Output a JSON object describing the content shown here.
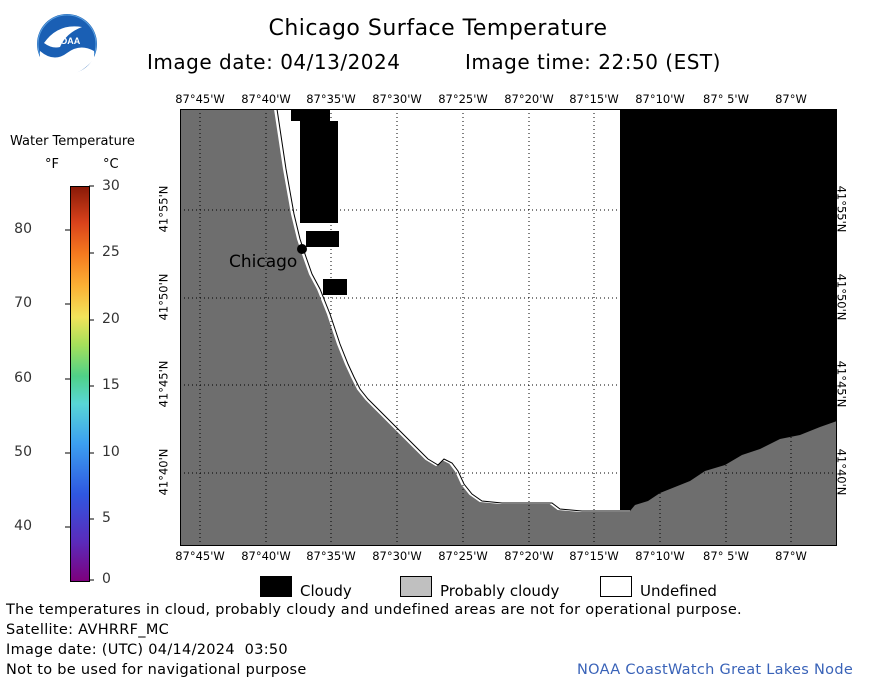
{
  "header": {
    "title": "Chicago Surface Temperature",
    "image_date": "Image date: 04/13/2024",
    "image_time": "Image time: 22:50 (EST)"
  },
  "logo": {
    "text": "NOAA",
    "icon": "noaa-logo"
  },
  "map": {
    "city_label": "Chicago",
    "lon_labels": [
      "87°45'W",
      "87°40'W",
      "87°35'W",
      "87°30'W",
      "87°25'W",
      "87°20'W",
      "87°15'W",
      "87°10'W",
      "87° 5'W",
      "87°W"
    ],
    "lat_labels": [
      "41°55'N",
      "41°50'N",
      "41°45'N",
      "41°40'N"
    ],
    "colors": {
      "land": "#6e6e6e",
      "cloudy": "#000000",
      "undefined": "#ffffff",
      "probably_cloudy": "#c0c0c0"
    }
  },
  "scale": {
    "title": "Water Temperature",
    "unit_f": "°F",
    "unit_c": "°C",
    "f_ticks": [
      "80",
      "70",
      "60",
      "50",
      "40"
    ],
    "c_ticks": [
      "30",
      "25",
      "20",
      "15",
      "10",
      "5",
      "0"
    ]
  },
  "legend": {
    "cloudy": "Cloudy",
    "probably_cloudy": "Probably cloudy",
    "undefined": "Undefined"
  },
  "footer": {
    "disclaimer": "The temperatures in cloud, probably cloudy and undefined areas are not for operational purpose.",
    "satellite": "Satellite: AVHRRF_MC",
    "utc_date": "Image date: (UTC) 04/14/2024  03:50",
    "nav_warning": "Not to be used for navigational purpose",
    "credit": "NOAA CoastWatch Great Lakes Node"
  }
}
